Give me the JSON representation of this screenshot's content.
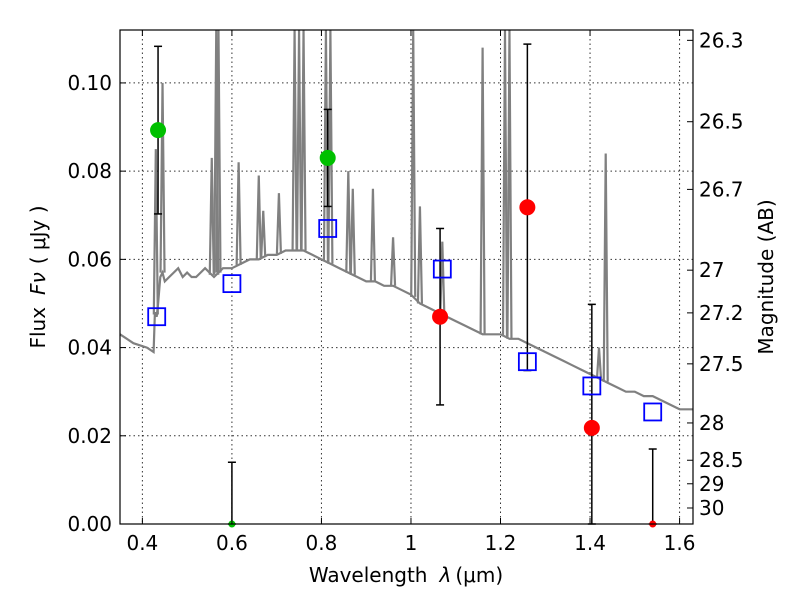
{
  "chart_data": {
    "type": "scatter",
    "xlabel_prefix": "Wavelength",
    "xlabel_symbol": "λ",
    "xlabel_unit": "(μm)",
    "ylabel_prefix": "Flux",
    "ylabel_symbol": "Fν",
    "ylabel_unit": "( μJy )",
    "y2label": "Magnitude (AB)",
    "xlim": [
      0.35,
      1.63
    ],
    "ylim": [
      0.0,
      0.112
    ],
    "xticks": [
      0.4,
      0.6,
      0.8,
      1.0,
      1.2,
      1.4,
      1.6
    ],
    "xtick_labels": [
      "0.4",
      "0.6",
      "0.8",
      "1",
      "1.2",
      "1.4",
      "1.6"
    ],
    "yticks": [
      0.0,
      0.02,
      0.04,
      0.06,
      0.08,
      0.1
    ],
    "ytick_labels": [
      "0.00",
      "0.02",
      "0.04",
      "0.06",
      "0.08",
      "0.10"
    ],
    "y2ticks": [
      {
        "label": "26.3",
        "mag": 26.3
      },
      {
        "label": "26.5",
        "mag": 26.5
      },
      {
        "label": "26.7",
        "mag": 26.7
      },
      {
        "label": "27",
        "mag": 27.0
      },
      {
        "label": "27.2",
        "mag": 27.2
      },
      {
        "label": "27.5",
        "mag": 27.5
      },
      {
        "label": "28",
        "mag": 28.0
      },
      {
        "label": "28.5",
        "mag": 28.5
      },
      {
        "label": "29",
        "mag": 29.0
      },
      {
        "label": "30",
        "mag": 30.0
      }
    ],
    "grid": true,
    "series": [
      {
        "kind": "model-spectrum",
        "color": "#808080",
        "x": [
          0.35,
          0.38,
          0.41,
          0.425,
          0.428,
          0.432,
          0.435,
          0.44,
          0.445,
          0.45,
          0.46,
          0.47,
          0.48,
          0.49,
          0.5,
          0.51,
          0.52,
          0.53,
          0.54,
          0.55,
          0.56,
          0.57,
          0.58,
          0.59,
          0.6,
          0.62,
          0.64,
          0.66,
          0.68,
          0.7,
          0.72,
          0.74,
          0.76,
          0.78,
          0.8,
          0.82,
          0.84,
          0.86,
          0.88,
          0.9,
          0.92,
          0.94,
          0.96,
          0.98,
          1.0,
          1.02,
          1.04,
          1.06,
          1.08,
          1.1,
          1.12,
          1.14,
          1.16,
          1.18,
          1.2,
          1.22,
          1.24,
          1.26,
          1.28,
          1.3,
          1.32,
          1.34,
          1.36,
          1.38,
          1.4,
          1.42,
          1.44,
          1.46,
          1.48,
          1.5,
          1.52,
          1.54,
          1.56,
          1.58,
          1.6,
          1.63
        ],
        "y": [
          0.043,
          0.041,
          0.04,
          0.039,
          0.048,
          0.047,
          0.05,
          0.056,
          0.057,
          0.055,
          0.056,
          0.057,
          0.058,
          0.056,
          0.057,
          0.056,
          0.056,
          0.057,
          0.058,
          0.057,
          0.056,
          0.057,
          0.058,
          0.058,
          0.058,
          0.059,
          0.06,
          0.06,
          0.061,
          0.061,
          0.062,
          0.062,
          0.062,
          0.061,
          0.06,
          0.059,
          0.058,
          0.057,
          0.056,
          0.055,
          0.055,
          0.054,
          0.054,
          0.053,
          0.052,
          0.05,
          0.049,
          0.048,
          0.047,
          0.046,
          0.045,
          0.044,
          0.043,
          0.043,
          0.043,
          0.042,
          0.042,
          0.041,
          0.04,
          0.039,
          0.038,
          0.037,
          0.036,
          0.035,
          0.034,
          0.033,
          0.032,
          0.031,
          0.03,
          0.03,
          0.029,
          0.029,
          0.028,
          0.027,
          0.026,
          0.026
        ],
        "lines": [
          [
            0.43,
            0.085
          ],
          [
            0.445,
            0.1
          ],
          [
            0.555,
            0.083
          ],
          [
            0.565,
            0.112
          ],
          [
            0.57,
            0.112
          ],
          [
            0.615,
            0.082
          ],
          [
            0.66,
            0.079
          ],
          [
            0.67,
            0.071
          ],
          [
            0.705,
            0.075
          ],
          [
            0.74,
            0.112
          ],
          [
            0.75,
            0.112
          ],
          [
            0.76,
            0.112
          ],
          [
            0.81,
            0.112
          ],
          [
            0.82,
            0.112
          ],
          [
            0.86,
            0.08
          ],
          [
            0.87,
            0.076
          ],
          [
            0.915,
            0.076
          ],
          [
            0.96,
            0.065
          ],
          [
            1.005,
            0.112
          ],
          [
            1.02,
            0.072
          ],
          [
            1.07,
            0.064
          ],
          [
            1.16,
            0.108
          ],
          [
            1.21,
            0.112
          ],
          [
            1.22,
            0.112
          ],
          [
            1.42,
            0.04
          ],
          [
            1.435,
            0.084
          ]
        ]
      },
      {
        "kind": "model-photometry",
        "marker": "open-square",
        "color": "#0000ff",
        "x": [
          0.432,
          0.6,
          0.814,
          1.07,
          1.26,
          1.404,
          1.54
        ],
        "y": [
          0.047,
          0.0545,
          0.067,
          0.0578,
          0.0368,
          0.0313,
          0.0254
        ]
      },
      {
        "kind": "observed-detections",
        "marker": "circle",
        "color": "#00c000",
        "x": [
          0.435,
          0.814
        ],
        "y": [
          0.0893,
          0.083
        ],
        "err": [
          0.019,
          0.011
        ]
      },
      {
        "kind": "observed-upper",
        "marker": "circle",
        "color": "#ff0000",
        "x": [
          1.065,
          1.26,
          1.404
        ],
        "y": [
          0.047,
          0.0718,
          0.0218
        ],
        "err": [
          0.02,
          0.037,
          0.028
        ]
      },
      {
        "kind": "zero-flux-points",
        "marker": "small-circle",
        "x": [
          0.6,
          1.54
        ],
        "y": [
          0.0,
          0.0
        ],
        "colors": [
          "#00c000",
          "#ff0000"
        ],
        "err": [
          0.014,
          0.017
        ]
      }
    ]
  }
}
